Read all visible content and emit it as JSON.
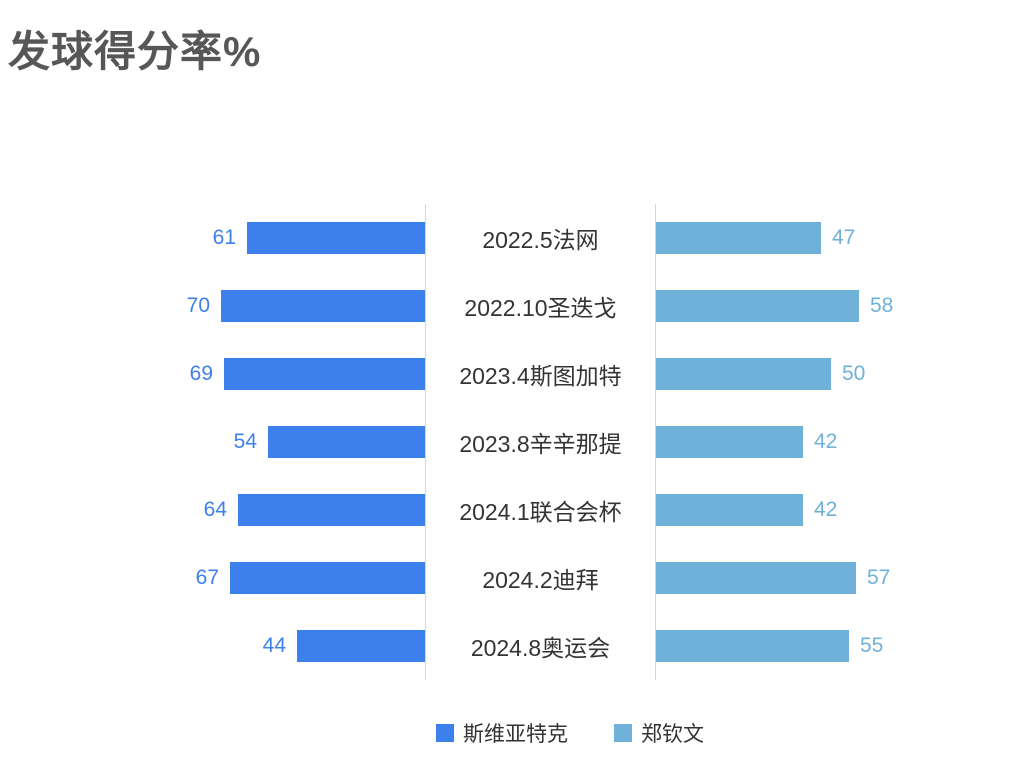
{
  "title": "发球得分率%",
  "colors": {
    "left_series": "#3e80eb",
    "right_series": "#6fb1d8",
    "title_text": "#575757",
    "category_text": "#333333",
    "divider_line": "#d6d6d6",
    "background": "#ffffff"
  },
  "legend": {
    "items": [
      {
        "label": "斯维亚特克",
        "color": "#3e80eb"
      },
      {
        "label": "郑钦文",
        "color": "#6fb1d8"
      }
    ]
  },
  "chart_data": {
    "type": "bar",
    "variant": "butterfly",
    "title": "发球得分率%",
    "xlabel": "",
    "ylabel": "",
    "grid": false,
    "legend_position": "bottom-center",
    "value_labels": true,
    "axis_ticks": "none",
    "categories": [
      "2022.5法网",
      "2022.10圣迭戈",
      "2023.4斯图加特",
      "2023.8辛辛那提",
      "2024.1联合会杯",
      "2024.2迪拜",
      "2024.8奥运会"
    ],
    "series": [
      {
        "name": "斯维亚特克",
        "side": "left",
        "color": "#3e80eb",
        "values": [
          61,
          70,
          69,
          54,
          64,
          67,
          44
        ]
      },
      {
        "name": "郑钦文",
        "side": "right",
        "color": "#6fb1d8",
        "values": [
          47,
          58,
          50,
          42,
          42,
          57,
          55
        ]
      }
    ]
  }
}
